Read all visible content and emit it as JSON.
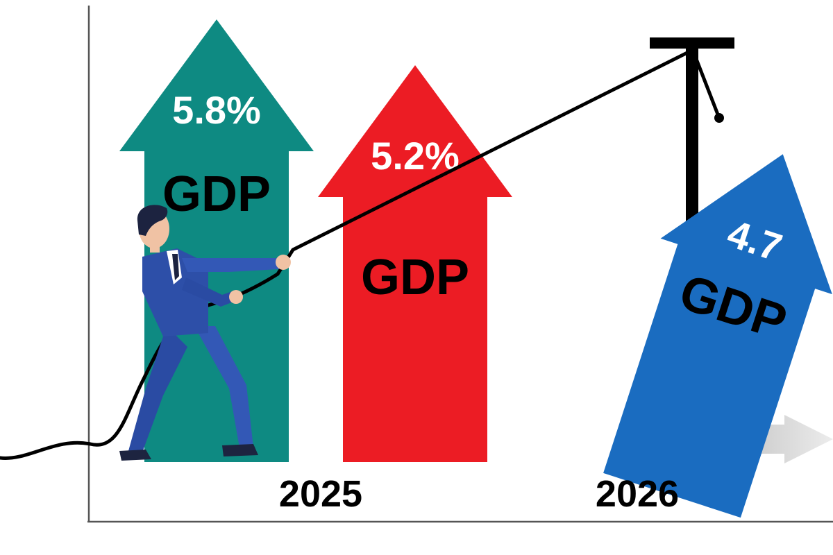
{
  "chart_data": {
    "type": "bar",
    "title": "",
    "xlabel": "",
    "ylabel": "",
    "grid": false,
    "legend": "none",
    "categories": [
      "2025",
      "2025",
      "2026"
    ],
    "values": [
      5.8,
      5.2,
      4.7
    ],
    "value_labels": [
      "5.8%",
      "5.2%",
      "4.7"
    ],
    "bar_labels": [
      "GDP",
      "GDP",
      "GDP"
    ],
    "x_tick_labels": [
      "2025",
      "2026"
    ],
    "bar_colors": [
      "#0e8a82",
      "#ec1c24",
      "#1a6cc0"
    ],
    "marks": [
      "arrow-up",
      "arrow-up",
      "arrow-tilted-falling"
    ]
  },
  "colors": {
    "axis": "#555555",
    "rope": "#000000",
    "pulley": "#000000",
    "motion_arrow": "#d0d0d0",
    "businessman_suit": "#2d4fa8",
    "businessman_skin": "#f0c2a4",
    "businessman_hair": "#1c2340"
  },
  "icons": {
    "figure": "businessman-pulling-rope-icon",
    "pulley": "pulley-post-icon",
    "motion": "motion-arrow-icon"
  }
}
